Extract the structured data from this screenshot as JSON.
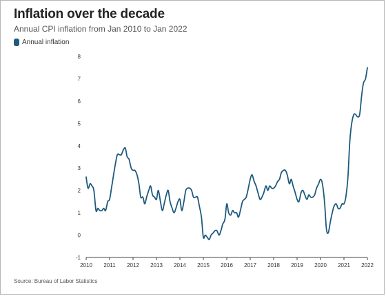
{
  "header": {
    "title": "Inflation over the decade",
    "subtitle": "Annual CPI inflation from Jan 2010 to Jan 2022"
  },
  "legend": {
    "label": "Annual inflation",
    "color": "#1f5a7e"
  },
  "footer": {
    "source": "Source: Bureau of Labor Statistics"
  },
  "chart_data": {
    "type": "line",
    "title": "Inflation over the decade",
    "subtitle": "Annual CPI inflation from Jan 2010 to Jan 2022",
    "xlabel": "",
    "ylabel": "",
    "xlim": [
      2010,
      2022
    ],
    "ylim": [
      -1,
      8
    ],
    "x_ticks": [
      "2010",
      "2011",
      "2012",
      "2013",
      "2014",
      "2015",
      "2016",
      "2017",
      "2018",
      "2019",
      "2020",
      "2021",
      "2022"
    ],
    "y_ticks": [
      "-1",
      "0",
      "1",
      "2",
      "3",
      "4",
      "5",
      "6",
      "7",
      "8"
    ],
    "grid": false,
    "legend_position": "top-left",
    "series": [
      {
        "name": "Annual inflation",
        "color": "#1f5a7e",
        "x": [
          2010.0,
          2010.08,
          2010.17,
          2010.25,
          2010.33,
          2010.42,
          2010.5,
          2010.58,
          2010.67,
          2010.75,
          2010.83,
          2010.92,
          2011.0,
          2011.08,
          2011.17,
          2011.25,
          2011.33,
          2011.42,
          2011.5,
          2011.58,
          2011.67,
          2011.75,
          2011.83,
          2011.92,
          2012.0,
          2012.08,
          2012.17,
          2012.25,
          2012.33,
          2012.42,
          2012.5,
          2012.58,
          2012.67,
          2012.75,
          2012.83,
          2012.92,
          2013.0,
          2013.08,
          2013.17,
          2013.25,
          2013.33,
          2013.42,
          2013.5,
          2013.58,
          2013.67,
          2013.75,
          2013.83,
          2013.92,
          2014.0,
          2014.08,
          2014.17,
          2014.25,
          2014.33,
          2014.42,
          2014.5,
          2014.58,
          2014.67,
          2014.75,
          2014.83,
          2014.92,
          2015.0,
          2015.08,
          2015.17,
          2015.25,
          2015.33,
          2015.42,
          2015.5,
          2015.58,
          2015.67,
          2015.75,
          2015.83,
          2015.92,
          2016.0,
          2016.08,
          2016.17,
          2016.25,
          2016.33,
          2016.42,
          2016.5,
          2016.58,
          2016.67,
          2016.75,
          2016.83,
          2016.92,
          2017.0,
          2017.08,
          2017.17,
          2017.25,
          2017.33,
          2017.42,
          2017.5,
          2017.58,
          2017.67,
          2017.75,
          2017.83,
          2017.92,
          2018.0,
          2018.08,
          2018.17,
          2018.25,
          2018.33,
          2018.42,
          2018.5,
          2018.58,
          2018.67,
          2018.75,
          2018.83,
          2018.92,
          2019.0,
          2019.08,
          2019.17,
          2019.25,
          2019.33,
          2019.42,
          2019.5,
          2019.58,
          2019.67,
          2019.75,
          2019.83,
          2019.92,
          2020.0,
          2020.08,
          2020.17,
          2020.25,
          2020.33,
          2020.42,
          2020.5,
          2020.58,
          2020.67,
          2020.75,
          2020.83,
          2020.92,
          2021.0,
          2021.08,
          2021.17,
          2021.25,
          2021.33,
          2021.42,
          2021.5,
          2021.58,
          2021.67,
          2021.75,
          2021.83,
          2021.92,
          2022.0
        ],
        "y": [
          2.6,
          2.1,
          2.3,
          2.2,
          2.0,
          1.1,
          1.2,
          1.1,
          1.1,
          1.2,
          1.1,
          1.5,
          1.6,
          2.1,
          2.7,
          3.2,
          3.6,
          3.6,
          3.6,
          3.8,
          3.9,
          3.5,
          3.4,
          3.0,
          2.9,
          2.9,
          2.7,
          2.3,
          1.7,
          1.7,
          1.4,
          1.7,
          2.0,
          2.2,
          1.8,
          1.7,
          1.6,
          2.0,
          1.5,
          1.1,
          1.4,
          1.8,
          2.0,
          1.5,
          1.2,
          1.0,
          1.2,
          1.5,
          1.6,
          1.1,
          1.5,
          2.0,
          2.1,
          2.1,
          2.0,
          1.7,
          1.7,
          1.7,
          1.3,
          0.8,
          -0.1,
          0.0,
          -0.1,
          -0.2,
          0.0,
          0.1,
          0.2,
          0.2,
          0.0,
          0.2,
          0.5,
          0.7,
          1.4,
          1.0,
          0.9,
          1.1,
          1.0,
          1.0,
          0.8,
          1.1,
          1.5,
          1.6,
          1.7,
          2.1,
          2.5,
          2.7,
          2.4,
          2.2,
          1.9,
          1.6,
          1.7,
          1.9,
          2.2,
          2.0,
          2.2,
          2.1,
          2.1,
          2.2,
          2.4,
          2.5,
          2.8,
          2.9,
          2.9,
          2.7,
          2.3,
          2.5,
          2.2,
          1.9,
          1.6,
          1.5,
          1.9,
          2.0,
          1.8,
          1.6,
          1.8,
          1.7,
          1.7,
          1.8,
          2.1,
          2.3,
          2.5,
          2.3,
          1.5,
          0.3,
          0.1,
          0.6,
          1.0,
          1.3,
          1.4,
          1.2,
          1.2,
          1.4,
          1.4,
          1.7,
          2.6,
          4.2,
          5.0,
          5.4,
          5.4,
          5.3,
          5.4,
          6.2,
          6.8,
          7.0,
          7.5
        ]
      }
    ]
  }
}
